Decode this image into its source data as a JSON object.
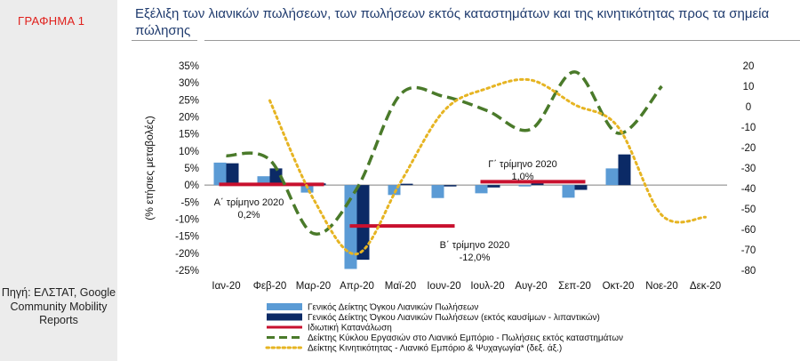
{
  "figure_label": "ΓΡΑΦΗΜΑ 1",
  "title": "Εξέλιξη των λιανικών πωλήσεων, των πωλήσεων εκτός καταστημάτων και της κινητικότητας προς τα σημεία πώλησης",
  "source": "Πηγή: ΕΛΣΤΑΤ, Google Community Mobility Reports",
  "chart_data": {
    "type": "bar",
    "categories": [
      "Ιαν-20",
      "Φεβ-20",
      "Μαρ-20",
      "Απρ-20",
      "Μαϊ-20",
      "Ιουν-20",
      "Ιουλ-20",
      "Αυγ-20",
      "Σεπ-20",
      "Οκτ-20",
      "Νοε-20",
      "Δεκ-20"
    ],
    "ylabel": "(% ετήσιες μεταβολές)",
    "ylim": [
      -25,
      35
    ],
    "y_ticks": [
      "35%",
      "30%",
      "25%",
      "20%",
      "15%",
      "10%",
      "5%",
      "0%",
      "-5%",
      "-10%",
      "-15%",
      "-20%",
      "-25%"
    ],
    "y2lim": [
      -80,
      20
    ],
    "y2_ticks": [
      "20",
      "10",
      "0",
      "-10",
      "-20",
      "-30",
      "-40",
      "-50",
      "-60",
      "-70",
      "-80"
    ],
    "series": [
      {
        "name": "Γενικός Δείκτης Όγκου Λιανικών Πωλήσεων",
        "kind": "bar",
        "axis": "left",
        "color": "#5b9bd5",
        "values": [
          6.6,
          2.6,
          -2.2,
          -24.6,
          -2.9,
          -3.8,
          -2.4,
          -0.4,
          -3.7,
          4.9,
          null,
          null
        ]
      },
      {
        "name": "Γενικός Δείκτης Όγκου Λιανικών Πωλήσεων (εκτός καυσίμων - λιπαντικών)",
        "kind": "bar",
        "axis": "left",
        "color": "#0b2a66",
        "values": [
          6.4,
          4.9,
          0.5,
          -21.9,
          0.4,
          -0.4,
          -0.7,
          1.0,
          -1.4,
          9.0,
          null,
          null
        ]
      },
      {
        "name": "Ιδιωτική Κατανάλωση",
        "kind": "step",
        "axis": "left",
        "color": "#c8102e",
        "segments": [
          {
            "from": 0,
            "to": 2,
            "value": 0.2
          },
          {
            "from": 3,
            "to": 5,
            "value": -12.0
          },
          {
            "from": 6,
            "to": 8,
            "value": 1.0
          }
        ]
      },
      {
        "name": "Δείκτης Κύκλου Εργασιών στο Λιανικό Εμπόριο - Πωλήσεις εκτός καταστημάτων",
        "kind": "line",
        "axis": "right",
        "color": "#4a7a2a",
        "values": [
          -24,
          -26,
          -62,
          -40,
          6,
          5,
          -2,
          -11,
          17,
          -13,
          10,
          null
        ]
      },
      {
        "name": "Δείκτης Κινητικότητας - Λιανικό Εμπόριο & Ψυχαγωγία* (δεξ. άξ.)",
        "kind": "line",
        "axis": "right",
        "color": "#e6b422",
        "values": [
          null,
          3,
          -45,
          -72,
          -37,
          -2,
          9,
          13,
          1,
          -10,
          -53,
          -54
        ]
      }
    ],
    "annotations": [
      {
        "label": "Α΄ τρίμηνο 2020",
        "value": "0,2%"
      },
      {
        "label": "Β΄ τρίμηνο 2020",
        "value": "-12,0%"
      },
      {
        "label": "Γ΄ τρίμηνο 2020",
        "value": "1,0%"
      }
    ]
  }
}
